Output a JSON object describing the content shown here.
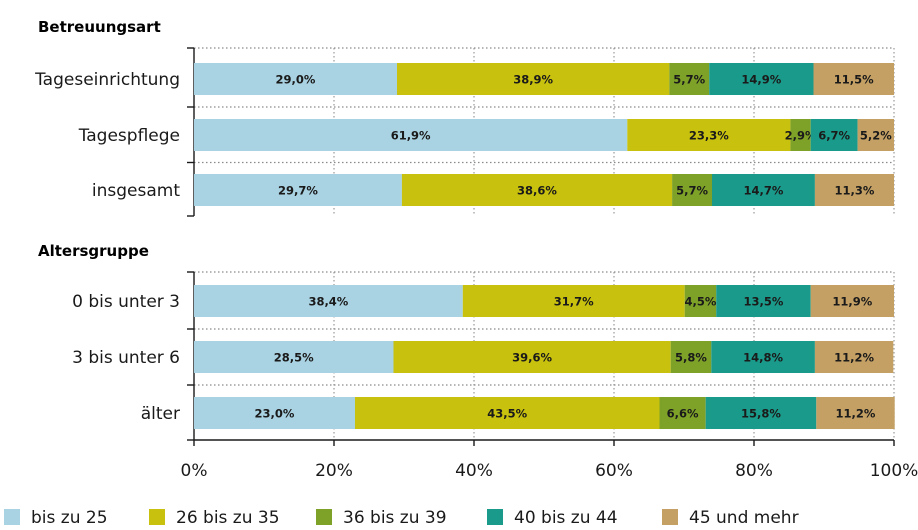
{
  "chart_data": {
    "type": "bar",
    "orientation": "horizontal",
    "stacked": true,
    "groups": [
      {
        "title": "Betreuungsart",
        "categories": [
          "Tageseinrichtung",
          "Tagespflege",
          "insgesamt"
        ]
      },
      {
        "title": "Altersgruppe",
        "categories": [
          "0 bis unter 3",
          "3 bis unter 6",
          "älter"
        ]
      }
    ],
    "series": [
      {
        "name": "bis zu 25",
        "color": "#a9d2e2",
        "values": [
          29.0,
          61.9,
          29.7,
          38.4,
          28.5,
          23.0
        ],
        "labels": [
          "29,0%",
          "61,9%",
          "29,7%",
          "38,4%",
          "28,5%",
          "23,0%"
        ]
      },
      {
        "name": "26 bis zu 35",
        "color": "#c8c10d",
        "values": [
          38.9,
          23.3,
          38.6,
          31.7,
          39.6,
          43.5
        ],
        "labels": [
          "38,9%",
          "23,3%",
          "38,6%",
          "31,7%",
          "39,6%",
          "43,5%"
        ]
      },
      {
        "name": "36 bis zu 39",
        "color": "#7ea228",
        "values": [
          5.7,
          2.9,
          5.7,
          4.5,
          5.8,
          6.6
        ],
        "labels": [
          "5,7%",
          "2,9%",
          "5,7%",
          "4,5%",
          "5,8%",
          "6,6%"
        ]
      },
      {
        "name": "40 bis zu 44",
        "color": "#1a9a8a",
        "values": [
          14.9,
          6.7,
          14.7,
          13.5,
          14.8,
          15.8
        ],
        "labels": [
          "14,9%",
          "6,7%",
          "14,7%",
          "13,5%",
          "14,8%",
          "15,8%"
        ]
      },
      {
        "name": "45 und mehr",
        "color": "#c4a064",
        "values": [
          11.5,
          5.2,
          11.3,
          11.9,
          11.2,
          11.2
        ],
        "labels": [
          "11,5%",
          "5,2%",
          "11,3%",
          "11,9%",
          "11,2%",
          "11,2%"
        ]
      }
    ],
    "xlim": [
      0,
      100
    ],
    "xticks": [
      0,
      20,
      40,
      60,
      80,
      100
    ],
    "xtick_labels": [
      "0%",
      "20%",
      "40%",
      "60%",
      "80%",
      "100%"
    ],
    "grid": true,
    "legend_position": "bottom"
  }
}
